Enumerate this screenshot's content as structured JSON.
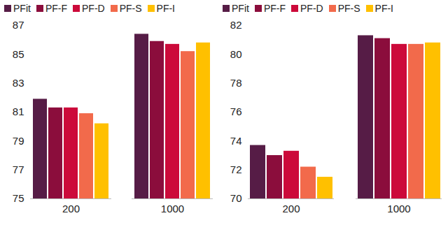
{
  "chart_data": [
    {
      "type": "bar",
      "categories": [
        "200",
        "1000"
      ],
      "series": [
        {
          "name": "PFit",
          "color": "#561c46",
          "values": [
            81.9,
            86.4
          ]
        },
        {
          "name": "PF-F",
          "color": "#8b0d3c",
          "values": [
            81.3,
            85.9
          ]
        },
        {
          "name": "PF-D",
          "color": "#cc0a3a",
          "values": [
            81.3,
            85.7
          ]
        },
        {
          "name": "PF-S",
          "color": "#f26a4b",
          "values": [
            80.9,
            85.2
          ]
        },
        {
          "name": "PF-I",
          "color": "#ffc000",
          "values": [
            80.2,
            85.8
          ]
        }
      ],
      "ylim": [
        75,
        87
      ],
      "yticks": [
        75,
        77,
        79,
        81,
        83,
        85,
        87
      ],
      "grid": false,
      "legend": "top"
    },
    {
      "type": "bar",
      "categories": [
        "200",
        "1000"
      ],
      "series": [
        {
          "name": "PFit",
          "color": "#561c46",
          "values": [
            73.7,
            81.3
          ]
        },
        {
          "name": "PF-F",
          "color": "#8b0d3c",
          "values": [
            73.0,
            81.1
          ]
        },
        {
          "name": "PF-D",
          "color": "#cc0a3a",
          "values": [
            73.3,
            80.7
          ]
        },
        {
          "name": "PF-S",
          "color": "#f26a4b",
          "values": [
            72.2,
            80.7
          ]
        },
        {
          "name": "PF-I",
          "color": "#ffc000",
          "values": [
            71.5,
            80.8
          ]
        }
      ],
      "ylim": [
        70,
        82
      ],
      "yticks": [
        70,
        72,
        74,
        76,
        78,
        80,
        82
      ],
      "grid": false,
      "legend": "top"
    }
  ]
}
